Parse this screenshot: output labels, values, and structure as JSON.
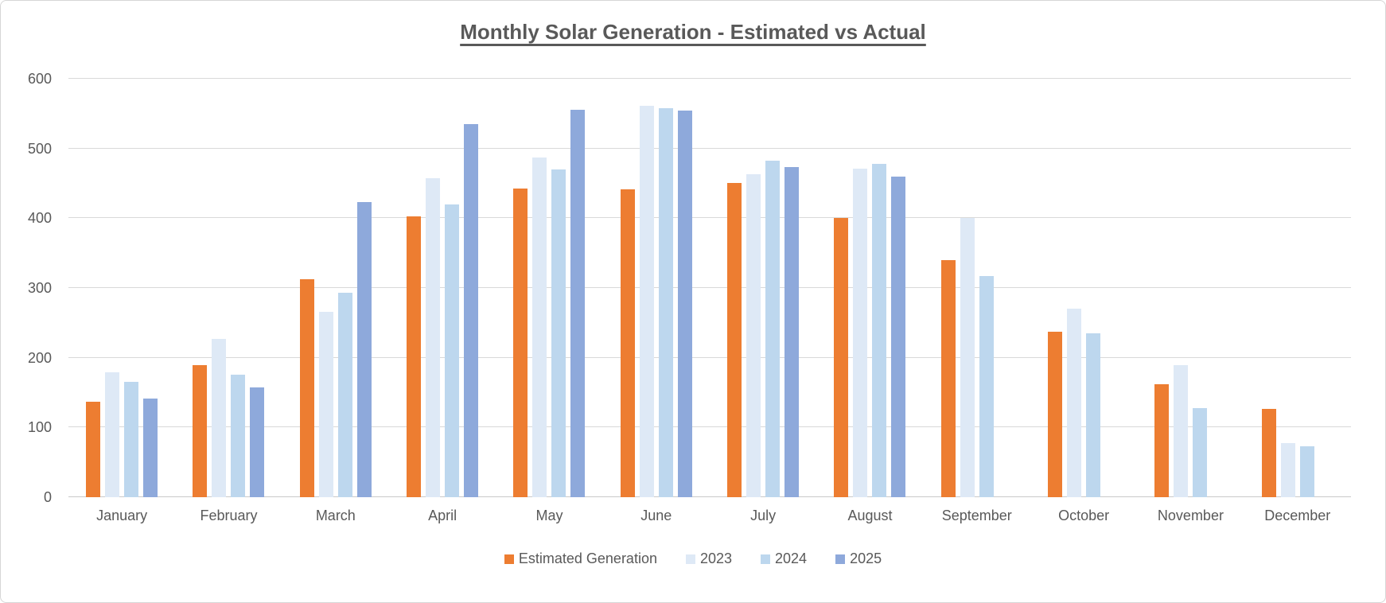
{
  "title": "Monthly Solar Generation - Estimated vs Actual",
  "colors": {
    "estimated": "#ED7D31",
    "year_2023": "#DEE9F6",
    "year_2024": "#BDD7EE",
    "year_2025": "#8EA9DB",
    "gridline": "#D9D9D9",
    "axis_line": "#C9C9C9",
    "text": "#595959"
  },
  "y_axis": {
    "ticks": [
      "0",
      "100",
      "200",
      "300",
      "400",
      "500",
      "600"
    ]
  },
  "chart_data": {
    "type": "bar",
    "title": "Monthly Solar Generation - Estimated vs Actual",
    "categories": [
      "January",
      "February",
      "March",
      "April",
      "May",
      "June",
      "July",
      "August",
      "September",
      "October",
      "November",
      "December"
    ],
    "series": [
      {
        "name": "Estimated Generation",
        "color": "#ED7D31",
        "values": [
          137,
          189,
          312,
          403,
          443,
          442,
          451,
          400,
          340,
          237,
          162,
          127
        ]
      },
      {
        "name": "2023",
        "color": "#DEE9F6",
        "values": [
          179,
          227,
          266,
          457,
          487,
          561,
          463,
          471,
          400,
          270,
          189,
          78
        ]
      },
      {
        "name": "2024",
        "color": "#BDD7EE",
        "values": [
          165,
          176,
          293,
          420,
          470,
          558,
          482,
          478,
          317,
          235,
          128,
          73
        ]
      },
      {
        "name": "2025",
        "color": "#8EA9DB",
        "values": [
          141,
          158,
          423,
          535,
          556,
          554,
          473,
          460,
          null,
          null,
          null,
          null
        ]
      }
    ],
    "xlabel": "",
    "ylabel": "",
    "ylim": [
      0,
      600
    ],
    "ytick_step": 100,
    "grid": true,
    "legend_position": "bottom"
  }
}
